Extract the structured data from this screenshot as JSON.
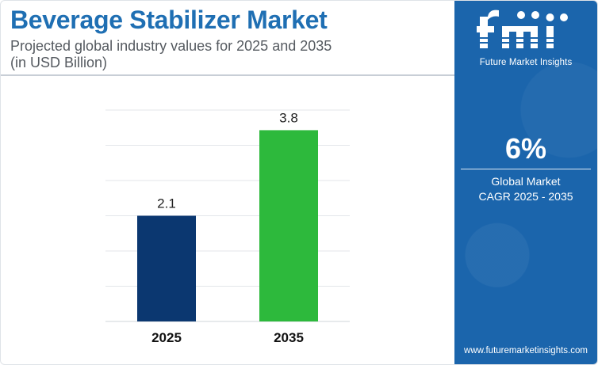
{
  "header": {
    "title": "Beverage Stabilizer Market",
    "subtitle_line1": "Projected global industry values for 2025 and 2035",
    "subtitle_line2": "(in USD Billion)"
  },
  "sidebar": {
    "brand": "Future Market Insights",
    "cagr_value": "6%",
    "cagr_label_line1": "Global Market",
    "cagr_label_line2": "CAGR 2025 - 2035",
    "website": "www.futuremarketinsights.com"
  },
  "chart_data": {
    "type": "bar",
    "categories": [
      "2025",
      "2035"
    ],
    "values": [
      2.1,
      3.8
    ],
    "data_labels": [
      "2.1",
      "3.8"
    ],
    "colors": [
      "#0b3770",
      "#2db93c"
    ],
    "title": "",
    "xlabel": "",
    "ylabel": "",
    "ylim": [
      0,
      4.2
    ],
    "grid": true,
    "legend": "none"
  },
  "colors": {
    "title": "#1f6fb3",
    "panel": "#1b65ac",
    "grid": "#e3e6ea"
  }
}
